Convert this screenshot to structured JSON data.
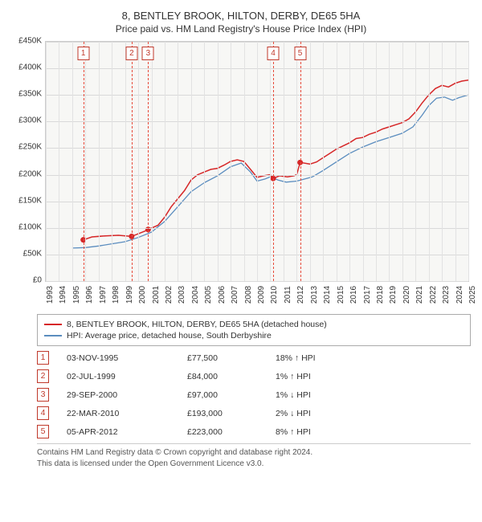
{
  "title": "8, BENTLEY BROOK, HILTON, DERBY, DE65 5HA",
  "subtitle": "Price paid vs. HM Land Registry's House Price Index (HPI)",
  "chart": {
    "type": "line",
    "background_color": "#f7f7f5",
    "grid_color": "#d9d9d9",
    "x_min": 1993,
    "x_max": 2025,
    "y_min": 0,
    "y_max": 450000,
    "y_ticks": [
      0,
      50000,
      100000,
      150000,
      200000,
      250000,
      300000,
      350000,
      400000,
      450000
    ],
    "y_tick_labels": [
      "£0",
      "£50K",
      "£100K",
      "£150K",
      "£200K",
      "£250K",
      "£300K",
      "£350K",
      "£400K",
      "£450K"
    ],
    "x_ticks": [
      1993,
      1994,
      1995,
      1996,
      1997,
      1998,
      1999,
      2000,
      2001,
      2002,
      2003,
      2004,
      2005,
      2006,
      2007,
      2008,
      2009,
      2010,
      2011,
      2012,
      2013,
      2014,
      2015,
      2016,
      2017,
      2018,
      2019,
      2020,
      2021,
      2022,
      2023,
      2024,
      2025
    ],
    "series_property": {
      "label": "8, BENTLEY BROOK, HILTON, DERBY, DE65 5HA (detached house)",
      "color": "#d62728",
      "width": 1.5,
      "points": [
        [
          1995.84,
          77500
        ],
        [
          1996.5,
          83000
        ],
        [
          1997.5,
          85000
        ],
        [
          1998.5,
          86000
        ],
        [
          1999.5,
          84000
        ],
        [
          2000.5,
          94000
        ],
        [
          2000.75,
          97000
        ],
        [
          2001.5,
          105000
        ],
        [
          2002.0,
          120000
        ],
        [
          2002.5,
          140000
        ],
        [
          2003.0,
          155000
        ],
        [
          2003.5,
          170000
        ],
        [
          2004.0,
          190000
        ],
        [
          2004.5,
          200000
        ],
        [
          2005.0,
          205000
        ],
        [
          2005.5,
          210000
        ],
        [
          2006.0,
          212000
        ],
        [
          2006.5,
          218000
        ],
        [
          2007.0,
          225000
        ],
        [
          2007.5,
          228000
        ],
        [
          2008.0,
          225000
        ],
        [
          2008.5,
          210000
        ],
        [
          2009.0,
          195000
        ],
        [
          2009.5,
          198000
        ],
        [
          2010.0,
          200000
        ],
        [
          2010.22,
          193000
        ],
        [
          2010.7,
          198000
        ],
        [
          2011.3,
          196000
        ],
        [
          2011.8,
          198000
        ],
        [
          2012.0,
          200000
        ],
        [
          2012.26,
          223000
        ],
        [
          2013.0,
          220000
        ],
        [
          2013.5,
          224000
        ],
        [
          2014.0,
          232000
        ],
        [
          2014.5,
          240000
        ],
        [
          2015.0,
          248000
        ],
        [
          2015.5,
          254000
        ],
        [
          2016.0,
          260000
        ],
        [
          2016.5,
          268000
        ],
        [
          2017.0,
          270000
        ],
        [
          2017.5,
          276000
        ],
        [
          2018.0,
          280000
        ],
        [
          2018.5,
          286000
        ],
        [
          2019.0,
          290000
        ],
        [
          2019.5,
          294000
        ],
        [
          2020.0,
          298000
        ],
        [
          2020.5,
          305000
        ],
        [
          2021.0,
          318000
        ],
        [
          2021.5,
          335000
        ],
        [
          2022.0,
          350000
        ],
        [
          2022.5,
          362000
        ],
        [
          2023.0,
          368000
        ],
        [
          2023.5,
          365000
        ],
        [
          2024.0,
          372000
        ],
        [
          2024.5,
          376000
        ],
        [
          2025.0,
          378000
        ]
      ]
    },
    "series_hpi": {
      "label": "HPI: Average price, detached house, South Derbyshire",
      "color": "#5b8dbf",
      "width": 1.3,
      "points": [
        [
          1995.0,
          62000
        ],
        [
          1996.0,
          63000
        ],
        [
          1997.0,
          66000
        ],
        [
          1998.0,
          70000
        ],
        [
          1999.0,
          74000
        ],
        [
          2000.0,
          82000
        ],
        [
          2001.0,
          92000
        ],
        [
          2002.0,
          112000
        ],
        [
          2003.0,
          140000
        ],
        [
          2004.0,
          168000
        ],
        [
          2005.0,
          185000
        ],
        [
          2006.0,
          198000
        ],
        [
          2007.0,
          215000
        ],
        [
          2007.8,
          222000
        ],
        [
          2008.5,
          205000
        ],
        [
          2009.0,
          188000
        ],
        [
          2009.6,
          192000
        ],
        [
          2010.0,
          196000
        ],
        [
          2010.6,
          190000
        ],
        [
          2011.2,
          186000
        ],
        [
          2012.0,
          188000
        ],
        [
          2012.6,
          192000
        ],
        [
          2013.2,
          196000
        ],
        [
          2014.0,
          208000
        ],
        [
          2015.0,
          224000
        ],
        [
          2016.0,
          240000
        ],
        [
          2017.0,
          252000
        ],
        [
          2018.0,
          262000
        ],
        [
          2019.0,
          270000
        ],
        [
          2020.0,
          278000
        ],
        [
          2020.8,
          290000
        ],
        [
          2021.5,
          312000
        ],
        [
          2022.0,
          330000
        ],
        [
          2022.6,
          344000
        ],
        [
          2023.2,
          346000
        ],
        [
          2023.8,
          340000
        ],
        [
          2024.3,
          345000
        ],
        [
          2025.0,
          350000
        ]
      ]
    },
    "markers": [
      {
        "idx": "1",
        "x": 1995.84
      },
      {
        "idx": "2",
        "x": 1999.5
      },
      {
        "idx": "3",
        "x": 2000.75
      },
      {
        "idx": "4",
        "x": 2010.22
      },
      {
        "idx": "5",
        "x": 2012.26
      }
    ]
  },
  "legend": {
    "items": [
      {
        "color": "#d62728",
        "label": "8, BENTLEY BROOK, HILTON, DERBY, DE65 5HA (detached house)"
      },
      {
        "color": "#5b8dbf",
        "label": "HPI: Average price, detached house, South Derbyshire"
      }
    ]
  },
  "sales": [
    {
      "idx": "1",
      "date": "03-NOV-1995",
      "price": "£77,500",
      "hpi": "18% ↑ HPI"
    },
    {
      "idx": "2",
      "date": "02-JUL-1999",
      "price": "£84,000",
      "hpi": "1% ↑ HPI"
    },
    {
      "idx": "3",
      "date": "29-SEP-2000",
      "price": "£97,000",
      "hpi": "1% ↓ HPI"
    },
    {
      "idx": "4",
      "date": "22-MAR-2010",
      "price": "£193,000",
      "hpi": "2% ↓ HPI"
    },
    {
      "idx": "5",
      "date": "05-APR-2012",
      "price": "£223,000",
      "hpi": "8% ↑ HPI"
    }
  ],
  "footer_line1": "Contains HM Land Registry data © Crown copyright and database right 2024.",
  "footer_line2": "This data is licensed under the Open Government Licence v3.0."
}
